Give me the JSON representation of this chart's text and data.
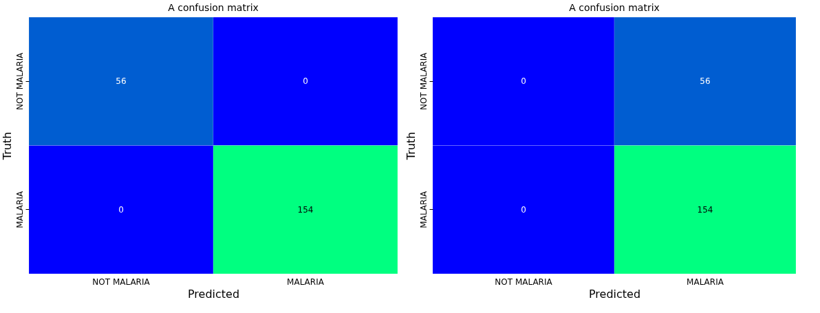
{
  "chart_data": [
    {
      "type": "heatmap",
      "title": "A confusion matrix",
      "xlabel": "Predicted",
      "ylabel": "Truth",
      "categories": [
        "NOT MALARIA",
        "MALARIA"
      ],
      "y_categories": [
        "NOT MALARIA",
        "MALARIA"
      ],
      "cells": [
        [
          56,
          0
        ],
        [
          0,
          154
        ]
      ],
      "data_labels": true
    },
    {
      "type": "heatmap",
      "title": "A confusion matrix",
      "xlabel": "Predicted",
      "ylabel": "Truth",
      "categories": [
        "NOT MALARIA",
        "MALARIA"
      ],
      "y_categories": [
        "NOT MALARIA",
        "MALARIA"
      ],
      "cells": [
        [
          0,
          56
        ],
        [
          0,
          154
        ]
      ],
      "data_labels": true
    }
  ]
}
